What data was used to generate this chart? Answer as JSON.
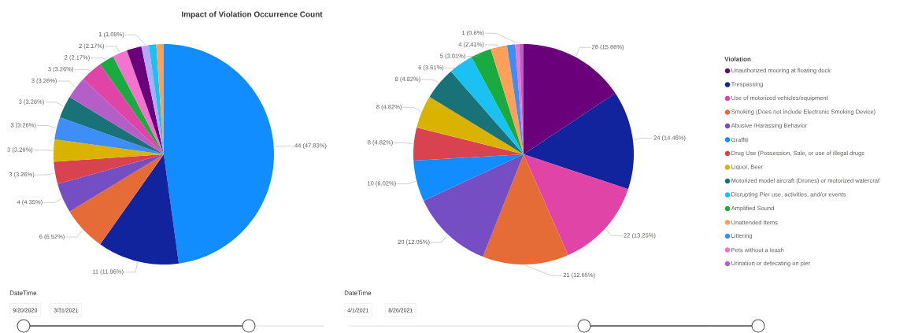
{
  "chart_data": [
    {
      "type": "pie",
      "title": "Impact of Violation Occurrence Count",
      "categories": [
        null,
        null,
        null,
        null,
        null,
        null,
        null,
        null,
        null,
        null,
        null,
        null,
        null,
        null,
        null,
        null
      ],
      "values": [
        44,
        11,
        6,
        4,
        3,
        3,
        3,
        3,
        3,
        3,
        2,
        2,
        2,
        1,
        1,
        1
      ],
      "colors": [
        "#118dff",
        "#12239e",
        "#e66c37",
        "#744ec2",
        "#d9434f",
        "#d9b300",
        "#3f8ef7",
        "#197278",
        "#b45ec8",
        "#e044a7",
        "#1aab40",
        "#f472d0",
        "#6b007b",
        "#b3a7f7",
        "#1ac1f2",
        "#ffa058"
      ],
      "value_labels": [
        "44 (47.83%)",
        "11 (11.96%)",
        "6 (6.52%)",
        "4 (4.35%)",
        "3 (3.26%)",
        "3 (3.26%)",
        "3 (3.26%)",
        "3 (3.26%)",
        "3 (3.26%)",
        "3 (3.26%)",
        "2 (2.17%)",
        "2 (2.17%)",
        null,
        "1 (1.09%)",
        null,
        null
      ],
      "legend": false,
      "annotations": [
        "DateTime",
        "9/20/2020",
        "3/31/2021"
      ]
    },
    {
      "type": "pie",
      "legend_title": "Violation",
      "categories": [
        "Unauthorized mooring at floating dock",
        "Trespassing",
        "Use of motorized vehicles/equipment",
        "Smoking (Does not include Electronic Smoking Device)",
        "Abusive /Harassing Behavior",
        "Graffiti",
        "Drug Use (Possession, Sale, or use of illegal drugs",
        "Liquor, Beer",
        "Motorized model aircraft (Drones) or motorized watercraf",
        "Disrupting Pier use, activities, and/or events",
        "Amplified Sound",
        "Unattended Items",
        "Littering",
        "Pets without a leash",
        "Urination or defecating on pier"
      ],
      "values": [
        26,
        24,
        22,
        21,
        20,
        10,
        8,
        8,
        8,
        6,
        5,
        4,
        2,
        1,
        1
      ],
      "colors": [
        "#6b007b",
        "#12239e",
        "#e044a7",
        "#e66c37",
        "#744ec2",
        "#118dff",
        "#d9434f",
        "#d9b300",
        "#197278",
        "#1ac1f2",
        "#1aab40",
        "#ffa058",
        "#3f8ef7",
        "#f472d0",
        "#b45ec8"
      ],
      "value_labels": [
        "26 (15.66%)",
        "24 (14.46%)",
        "22 (13.25%)",
        "21 (12.65%)",
        "20 (12.05%)",
        "10 (6.02%)",
        "8 (4.82%)",
        "8 (4.82%)",
        "8 (4.82%)",
        "6 (3.61%)",
        "5 (3.01%)",
        "4 (2.41%)",
        null,
        "1 (0.6%)",
        null
      ],
      "legend": "right",
      "annotations": [
        "DateTime",
        "4/1/2021",
        "8/26/2021"
      ]
    }
  ]
}
